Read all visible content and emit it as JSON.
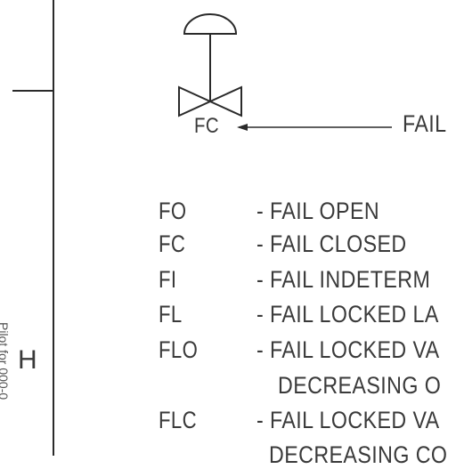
{
  "diagram": {
    "valve_tag": "FC",
    "callout_text": "FAIL",
    "row_letter": "H",
    "side_text": "Pilot for 000-0",
    "legend": [
      {
        "code": "FO",
        "description": "- FAIL OPEN",
        "continuation": ""
      },
      {
        "code": "FC",
        "description": "- FAIL CLOSED",
        "continuation": ""
      },
      {
        "code": "FI",
        "description": "- FAIL INDETERM",
        "continuation": ""
      },
      {
        "code": "FL",
        "description": "- FAIL LOCKED LA",
        "continuation": ""
      },
      {
        "code": "FLO",
        "description": "- FAIL LOCKED VA",
        "continuation": "DECREASING O"
      },
      {
        "code": "FLC",
        "description": "- FAIL LOCKED VA",
        "continuation": "DECREASING CO"
      }
    ]
  }
}
